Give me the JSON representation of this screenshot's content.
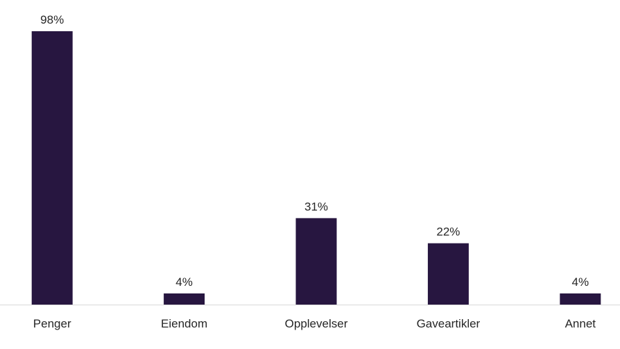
{
  "chart_data": {
    "type": "bar",
    "categories": [
      "Penger",
      "Eiendom",
      "Opplevelser",
      "Gaveartikler",
      "Annet"
    ],
    "values": [
      98,
      4,
      31,
      22,
      4
    ],
    "value_labels": [
      "98%",
      "4%",
      "31%",
      "22%",
      "4%"
    ],
    "title": "",
    "xlabel": "",
    "ylabel": "",
    "ylim": [
      0,
      100
    ],
    "grid": false,
    "legend": "none",
    "bar_color": "#271640"
  }
}
